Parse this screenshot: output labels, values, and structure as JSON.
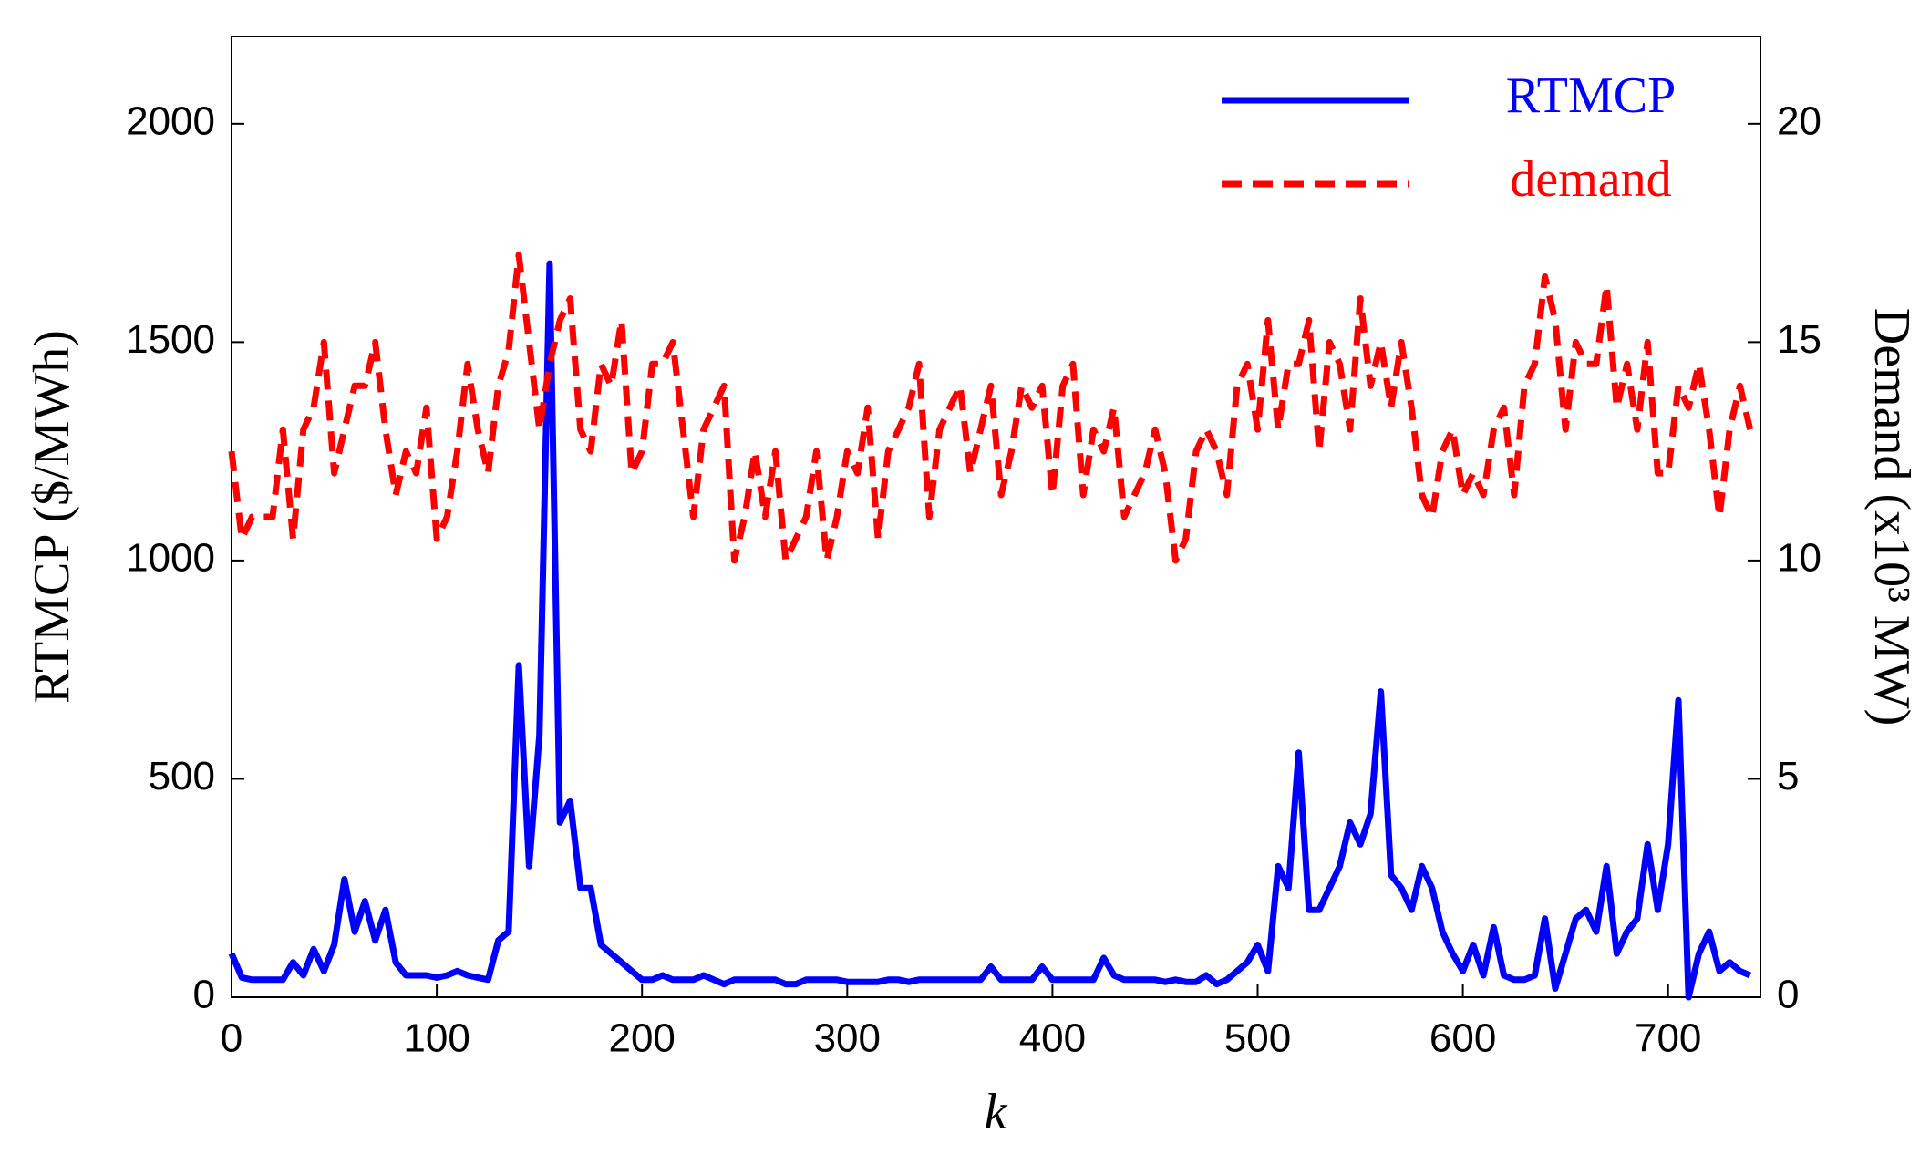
{
  "chart_data": {
    "type": "line",
    "xlabel": "k",
    "ylabel": "RTMCP ($/MWh)",
    "y2label": "Demand (x10³ MW)",
    "x": [
      0,
      5,
      10,
      15,
      20,
      25,
      30,
      35,
      40,
      45,
      50,
      55,
      60,
      65,
      70,
      75,
      80,
      85,
      90,
      95,
      100,
      105,
      110,
      115,
      120,
      125,
      130,
      135,
      140,
      145,
      150,
      155,
      160,
      165,
      170,
      175,
      180,
      185,
      190,
      195,
      200,
      205,
      210,
      215,
      220,
      225,
      230,
      235,
      240,
      245,
      250,
      255,
      260,
      265,
      270,
      275,
      280,
      285,
      290,
      295,
      300,
      305,
      310,
      315,
      320,
      325,
      330,
      335,
      340,
      345,
      350,
      355,
      360,
      365,
      370,
      375,
      380,
      385,
      390,
      395,
      400,
      405,
      410,
      415,
      420,
      425,
      430,
      435,
      440,
      445,
      450,
      455,
      460,
      465,
      470,
      475,
      480,
      485,
      490,
      495,
      500,
      505,
      510,
      515,
      520,
      525,
      530,
      535,
      540,
      545,
      550,
      555,
      560,
      565,
      570,
      575,
      580,
      585,
      590,
      595,
      600,
      605,
      610,
      615,
      620,
      625,
      630,
      635,
      640,
      645,
      650,
      655,
      660,
      665,
      670,
      675,
      680,
      685,
      690,
      695,
      700,
      705,
      710,
      715,
      720,
      725,
      730,
      735,
      740
    ],
    "series": [
      {
        "name": "RTMCP",
        "color": "#0000ff",
        "style": "solid",
        "values": [
          100,
          45,
          40,
          40,
          40,
          40,
          80,
          50,
          110,
          60,
          120,
          270,
          150,
          220,
          130,
          200,
          80,
          50,
          50,
          50,
          45,
          50,
          60,
          50,
          45,
          40,
          130,
          150,
          760,
          300,
          600,
          1680,
          400,
          450,
          250,
          250,
          120,
          100,
          80,
          60,
          40,
          40,
          50,
          40,
          40,
          40,
          50,
          40,
          30,
          40,
          40,
          40,
          40,
          40,
          30,
          30,
          40,
          40,
          40,
          40,
          35,
          35,
          35,
          35,
          40,
          40,
          35,
          40,
          40,
          40,
          40,
          40,
          40,
          40,
          70,
          40,
          40,
          40,
          40,
          70,
          40,
          40,
          40,
          40,
          40,
          90,
          50,
          40,
          40,
          40,
          40,
          35,
          40,
          35,
          35,
          50,
          30,
          40,
          60,
          80,
          120,
          60,
          300,
          250,
          560,
          200,
          200,
          250,
          300,
          400,
          350,
          420,
          700,
          280,
          250,
          200,
          300,
          250,
          150,
          100,
          60,
          120,
          50,
          160,
          50,
          40,
          40,
          50,
          180,
          20,
          100,
          180,
          200,
          150,
          300,
          100,
          150,
          180,
          350,
          200,
          350,
          680,
          0,
          100,
          150,
          60,
          80,
          60,
          50
        ]
      },
      {
        "name": "demand",
        "color": "#ff0000",
        "style": "dashed",
        "axis": "y2",
        "values": [
          12.5,
          10.5,
          11,
          11,
          11,
          13,
          10.5,
          13,
          13.5,
          15,
          12,
          13,
          14,
          14,
          15,
          13,
          11.5,
          12.5,
          12,
          13.5,
          10.5,
          11,
          12.5,
          14.5,
          13,
          12,
          14,
          14.8,
          17,
          15,
          13,
          14.5,
          15.5,
          16,
          13,
          12.5,
          14.5,
          14,
          15.5,
          12,
          12.5,
          14.5,
          14.5,
          15,
          13,
          11,
          13,
          13.5,
          14,
          10,
          11,
          12.5,
          11,
          12.5,
          10,
          10.5,
          11,
          12.5,
          10,
          11,
          12.5,
          12,
          13.5,
          10.5,
          12.5,
          13,
          13.5,
          14.5,
          11,
          13,
          13.5,
          14,
          12,
          13,
          14,
          11.5,
          12.5,
          14,
          13.5,
          14,
          11.5,
          14,
          14.5,
          11.5,
          13,
          12.5,
          13.5,
          11,
          11.5,
          12,
          13,
          12,
          10,
          10.5,
          12.5,
          13,
          12.5,
          11.5,
          14,
          14.5,
          13,
          15.5,
          13,
          14.5,
          14.5,
          15.5,
          12.5,
          15,
          14.5,
          13,
          16,
          14,
          15,
          13.5,
          15,
          13.5,
          11.5,
          11,
          12.5,
          13,
          11.5,
          12,
          11.5,
          13,
          13.5,
          11.5,
          14,
          14.5,
          16.5,
          15.5,
          13,
          15,
          14.5,
          14.5,
          16.3,
          13.5,
          14.5,
          13,
          15,
          12,
          12,
          14,
          13.5,
          14.5,
          13,
          11,
          13,
          14,
          13
        ]
      }
    ],
    "xlim": [
      0,
      745
    ],
    "xticks": [
      0,
      100,
      200,
      300,
      400,
      500,
      600,
      700
    ],
    "ylim": [
      0,
      2200
    ],
    "yticks": [
      0,
      500,
      1000,
      1500,
      2000
    ],
    "y2lim": [
      0,
      22
    ],
    "y2ticks": [
      0,
      5,
      10,
      15,
      20
    ],
    "legend": "upper right"
  }
}
